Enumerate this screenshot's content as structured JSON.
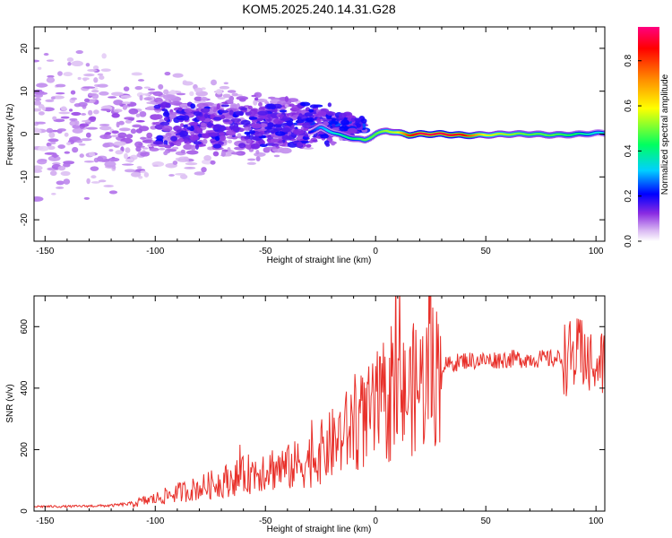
{
  "title": "KOM5.2025.240.14.31.G28",
  "chart_data": [
    {
      "type": "heatmap",
      "title": "KOM5.2025.240.14.31.G28",
      "xlabel": "Height of straight line (km)",
      "ylabel": "Frequency (Hz)",
      "xlim": [
        -155,
        104
      ],
      "ylim": [
        -25,
        25
      ],
      "xticks": [
        -150,
        -100,
        -50,
        0,
        50,
        100
      ],
      "xtick_labels": [
        "-150",
        "-100",
        "-50",
        "0",
        "50",
        "100"
      ],
      "yticks": [
        -20,
        -10,
        0,
        10,
        20
      ],
      "ytick_labels": [
        "-20",
        "-10",
        "0",
        "10",
        "20"
      ],
      "ridge": {
        "description": "dominant frequency ridge",
        "x": [
          -30,
          -25,
          -20,
          -15,
          -10,
          -5,
          0,
          5,
          10,
          15,
          20,
          30,
          40,
          50,
          60,
          70,
          80,
          90,
          100
        ],
        "freq": [
          0.5,
          1.5,
          0.5,
          -0.5,
          -1.0,
          -1.5,
          0.0,
          0.8,
          0.3,
          -0.2,
          0.0,
          0.0,
          -0.3,
          -0.2,
          0.0,
          0.0,
          -0.2,
          -0.1,
          0.2
        ],
        "amplitude": [
          0.2,
          0.3,
          0.35,
          0.4,
          0.45,
          0.5,
          0.5,
          0.55,
          0.6,
          0.85,
          0.95,
          0.95,
          0.9,
          0.6,
          0.55,
          0.5,
          0.5,
          0.45,
          0.35
        ]
      },
      "colorbar": {
        "label": "Normalized spectral amplitude",
        "range": [
          0,
          0.95
        ],
        "ticks": [
          0.0,
          0.2,
          0.4,
          0.6,
          0.8
        ],
        "tick_labels": [
          "0.0",
          "0.2",
          "0.4",
          "0.6",
          "0.8"
        ],
        "colors": [
          "#ffffff",
          "#d9b8f2",
          "#8a2be2",
          "#0000ff",
          "#00d0ff",
          "#00ff60",
          "#ffff00",
          "#ff8800",
          "#ff0000",
          "#ff0080"
        ]
      }
    },
    {
      "type": "line",
      "xlabel": "Height of straight line (km)",
      "ylabel": "SNR (v/v)",
      "xlim": [
        -155,
        104
      ],
      "ylim": [
        0,
        700
      ],
      "xticks": [
        -150,
        -100,
        -50,
        0,
        50,
        100
      ],
      "xtick_labels": [
        "-150",
        "-100",
        "-50",
        "0",
        "50",
        "100"
      ],
      "yticks": [
        0,
        200,
        400,
        600
      ],
      "ytick_labels": [
        "0",
        "200",
        "400",
        "600"
      ],
      "series": [
        {
          "name": "SNR",
          "color": "#e8302a",
          "x": [
            -155,
            -140,
            -120,
            -110,
            -100,
            -90,
            -80,
            -70,
            -60,
            -50,
            -40,
            -30,
            -20,
            -10,
            0,
            10,
            20,
            30,
            40,
            50,
            60,
            70,
            80,
            90,
            95,
            100,
            104
          ],
          "y": [
            15,
            15,
            18,
            25,
            40,
            60,
            75,
            95,
            115,
            140,
            140,
            165,
            215,
            275,
            320,
            360,
            410,
            470,
            490,
            490,
            495,
            495,
            495,
            500,
            510,
            470,
            480
          ]
        }
      ]
    }
  ]
}
